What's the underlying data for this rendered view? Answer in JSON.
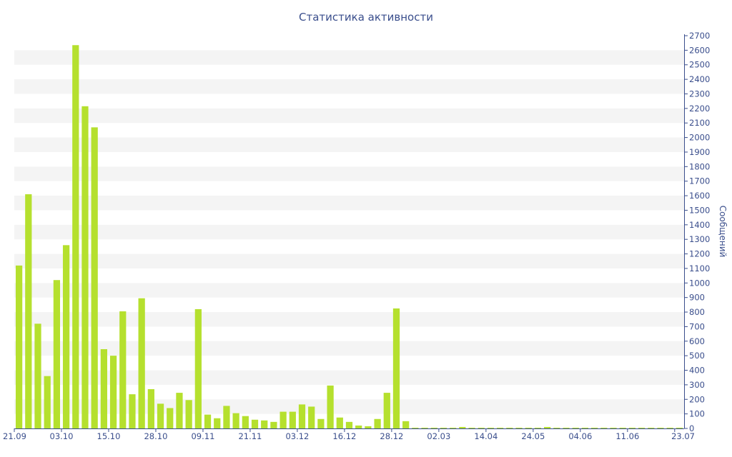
{
  "chart_data": {
    "type": "bar",
    "title": "Статистика активности",
    "ylabel": "Сообщений",
    "xlabel": "",
    "ylim": [
      0,
      2700
    ],
    "y_tick_step": 100,
    "grid": "alternating horizontal bands",
    "bar_color": "#b5e02e",
    "axis_color": "#3a4e8c",
    "band_color": "#f4f4f4",
    "x_tick_labels": [
      "21.09",
      "03.10",
      "15.10",
      "28.10",
      "09.11",
      "21.11",
      "03.12",
      "16.12",
      "28.12",
      "02.03",
      "14.04",
      "24.05",
      "04.06",
      "11.06",
      "23.07"
    ],
    "x_tick_positions": [
      0,
      5,
      10,
      15,
      20,
      25,
      30,
      35,
      40,
      45,
      50,
      55,
      60,
      65,
      70
    ],
    "values": [
      1120,
      1610,
      720,
      360,
      1020,
      1260,
      2635,
      2215,
      2070,
      545,
      500,
      805,
      235,
      895,
      270,
      170,
      140,
      245,
      195,
      820,
      95,
      70,
      155,
      105,
      85,
      60,
      55,
      45,
      115,
      115,
      165,
      150,
      65,
      295,
      75,
      45,
      20,
      15,
      65,
      245,
      825,
      50,
      5,
      5,
      5,
      5,
      5,
      10,
      5,
      5,
      5,
      5,
      5,
      5,
      5,
      5,
      10,
      5,
      5,
      5,
      5,
      5,
      5,
      5,
      5,
      5,
      5,
      5,
      5,
      5,
      5
    ]
  }
}
